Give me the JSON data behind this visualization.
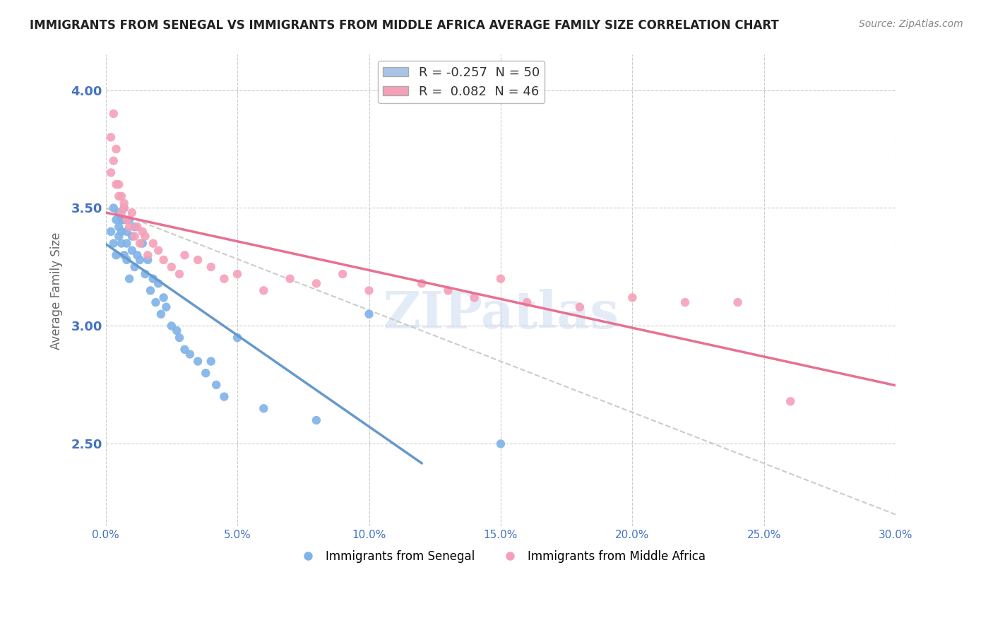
{
  "title": "IMMIGRANTS FROM SENEGAL VS IMMIGRANTS FROM MIDDLE AFRICA AVERAGE FAMILY SIZE CORRELATION CHART",
  "source": "Source: ZipAtlas.com",
  "xlabel": "",
  "ylabel": "Average Family Size",
  "xlim": [
    0.0,
    0.3
  ],
  "ylim": [
    2.15,
    4.15
  ],
  "yticks": [
    2.5,
    3.0,
    3.5,
    4.0
  ],
  "xticks": [
    0.0,
    0.05,
    0.1,
    0.15,
    0.2,
    0.25,
    0.3
  ],
  "xtick_labels": [
    "0.0%",
    "5.0%",
    "10.0%",
    "15.0%",
    "20.0%",
    "25.0%",
    "30.0%"
  ],
  "legend1_label": "R = -0.257  N = 50",
  "legend2_label": "R =  0.082  N = 46",
  "legend1_color": "#aac4e8",
  "legend2_color": "#f5a0b8",
  "scatter1_color": "#7fb3e8",
  "scatter2_color": "#f5a0b8",
  "line1_color": "#6699cc",
  "line2_color": "#e87090",
  "dash_color": "#cccccc",
  "watermark": "ZIPatlas",
  "watermark_color": "#c8d8f0",
  "title_color": "#222222",
  "axis_label_color": "#4472c4",
  "tick_color": "#4472c4",
  "background_color": "#ffffff",
  "R1": -0.257,
  "N1": 50,
  "R2": 0.082,
  "N2": 46,
  "senegal_x": [
    0.002,
    0.003,
    0.003,
    0.004,
    0.004,
    0.005,
    0.005,
    0.005,
    0.006,
    0.006,
    0.006,
    0.007,
    0.007,
    0.007,
    0.008,
    0.008,
    0.008,
    0.009,
    0.009,
    0.01,
    0.01,
    0.011,
    0.011,
    0.012,
    0.013,
    0.014,
    0.015,
    0.016,
    0.017,
    0.018,
    0.019,
    0.02,
    0.021,
    0.022,
    0.023,
    0.025,
    0.027,
    0.028,
    0.03,
    0.032,
    0.035,
    0.038,
    0.04,
    0.042,
    0.045,
    0.05,
    0.06,
    0.08,
    0.1,
    0.15
  ],
  "senegal_y": [
    3.4,
    3.5,
    3.35,
    3.45,
    3.3,
    3.48,
    3.42,
    3.38,
    3.45,
    3.4,
    3.35,
    3.3,
    3.45,
    3.5,
    3.4,
    3.35,
    3.28,
    3.45,
    3.2,
    3.38,
    3.32,
    3.42,
    3.25,
    3.3,
    3.28,
    3.35,
    3.22,
    3.28,
    3.15,
    3.2,
    3.1,
    3.18,
    3.05,
    3.12,
    3.08,
    3.0,
    2.98,
    2.95,
    2.9,
    2.88,
    2.85,
    2.8,
    2.85,
    2.75,
    2.7,
    2.95,
    2.65,
    2.6,
    3.05,
    2.5
  ],
  "middle_africa_x": [
    0.002,
    0.003,
    0.004,
    0.005,
    0.006,
    0.007,
    0.008,
    0.009,
    0.01,
    0.011,
    0.012,
    0.013,
    0.014,
    0.015,
    0.016,
    0.018,
    0.02,
    0.022,
    0.025,
    0.028,
    0.03,
    0.035,
    0.04,
    0.045,
    0.05,
    0.06,
    0.07,
    0.08,
    0.09,
    0.1,
    0.12,
    0.14,
    0.16,
    0.18,
    0.2,
    0.22,
    0.15,
    0.002,
    0.003,
    0.004,
    0.005,
    0.006,
    0.007,
    0.13,
    0.24,
    0.26
  ],
  "middle_africa_y": [
    3.8,
    3.9,
    3.75,
    3.6,
    3.55,
    3.5,
    3.45,
    3.42,
    3.48,
    3.38,
    3.42,
    3.35,
    3.4,
    3.38,
    3.3,
    3.35,
    3.32,
    3.28,
    3.25,
    3.22,
    3.3,
    3.28,
    3.25,
    3.2,
    3.22,
    3.15,
    3.2,
    3.18,
    3.22,
    3.15,
    3.18,
    3.12,
    3.1,
    3.08,
    3.12,
    3.1,
    3.2,
    3.65,
    3.7,
    3.6,
    3.55,
    3.48,
    3.52,
    3.15,
    3.1,
    2.68
  ]
}
